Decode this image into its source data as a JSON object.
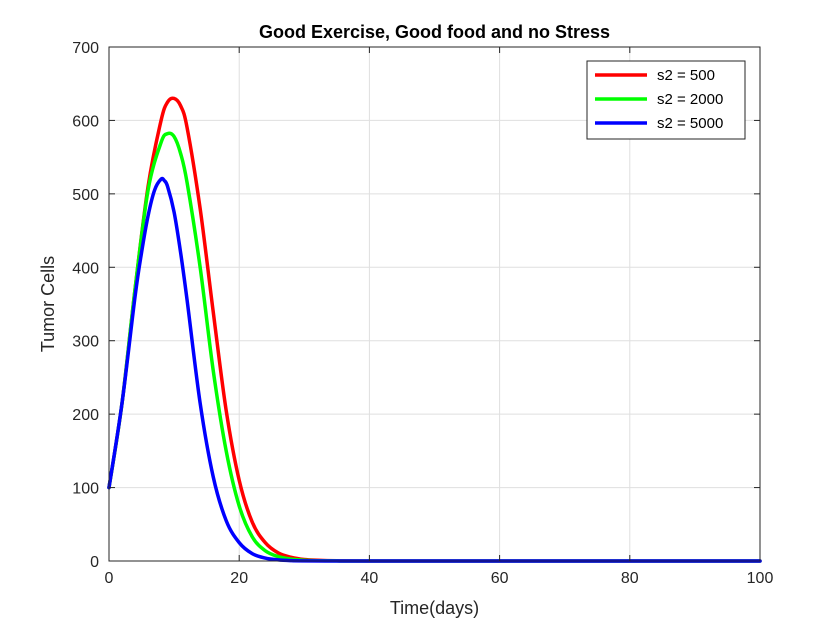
{
  "chart_data": {
    "type": "line",
    "title": "Good Exercise, Good food and no Stress",
    "xlabel": "Time(days)",
    "ylabel": "Tumor Cells",
    "xlim": [
      0,
      100
    ],
    "ylim": [
      0,
      700
    ],
    "xticks": [
      0,
      20,
      40,
      60,
      80,
      100
    ],
    "yticks": [
      0,
      100,
      200,
      300,
      400,
      500,
      600,
      700
    ],
    "xtick_labels": [
      "0",
      "20",
      "40",
      "60",
      "80",
      "100"
    ],
    "ytick_labels": [
      "0",
      "100",
      "200",
      "300",
      "400",
      "500",
      "600",
      "700"
    ],
    "grid": true,
    "legend_position": "top-right",
    "series": [
      {
        "name": "s2 = 500",
        "color": "#ff0000",
        "x": [
          0,
          2,
          4,
          6,
          8,
          9,
          10,
          11,
          12,
          14,
          16,
          18,
          20,
          22,
          24,
          26,
          28,
          30,
          32,
          35,
          40,
          50,
          100
        ],
        "y": [
          100,
          215,
          370,
          510,
          600,
          625,
          630,
          620,
          590,
          480,
          340,
          205,
          110,
          53,
          25,
          11,
          5,
          2,
          1,
          0.3,
          0,
          0,
          0
        ]
      },
      {
        "name": "s2 = 2000",
        "color": "#00ff00",
        "x": [
          0,
          2,
          4,
          6,
          8,
          9,
          10,
          11,
          12,
          14,
          16,
          18,
          20,
          22,
          24,
          26,
          28,
          30,
          32,
          35,
          40,
          50,
          100
        ],
        "y": [
          100,
          215,
          370,
          505,
          570,
          582,
          578,
          555,
          515,
          400,
          260,
          150,
          75,
          33,
          14,
          6,
          2.5,
          1,
          0.4,
          0.1,
          0,
          0,
          0
        ]
      },
      {
        "name": "s2 = 5000",
        "color": "#0000ff",
        "x": [
          0,
          2,
          4,
          5,
          6,
          7,
          8,
          8.5,
          9,
          10,
          11,
          12,
          14,
          16,
          18,
          20,
          22,
          24,
          26,
          28,
          30,
          35,
          40,
          100
        ],
        "y": [
          100,
          215,
          360,
          420,
          470,
          505,
          520,
          518,
          510,
          475,
          420,
          355,
          215,
          115,
          55,
          25,
          10,
          4,
          1.5,
          0.5,
          0.2,
          0,
          0,
          0
        ]
      }
    ]
  }
}
